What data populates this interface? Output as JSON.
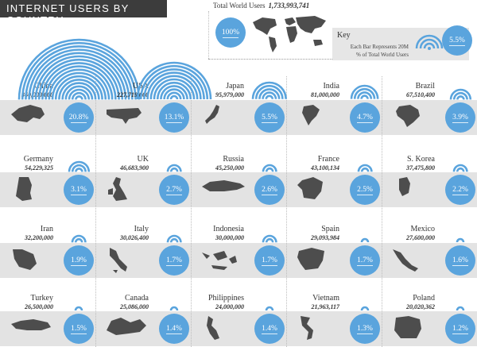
{
  "title": "INTERNET USERS BY COUNTRY",
  "world": {
    "label": "Total World Users",
    "value": "1,733,993,741",
    "percent": "100%"
  },
  "key": {
    "title": "Key",
    "bar_text": "Each Bar Represents 20M",
    "pct_text": "% of Total World Users",
    "sample_pct": "5.5%"
  },
  "colors": {
    "wifi": "#5aa4dd",
    "map": "#4d4d4d",
    "band": "#e3e3e3",
    "title_bar": "#3c3c3c"
  },
  "chart_data": {
    "type": "bar",
    "title": "INTERNET USERS BY COUNTRY",
    "categories": [
      "China",
      "USA",
      "Japan",
      "India",
      "Brazil",
      "Germany",
      "UK",
      "Russia",
      "France",
      "S. Korea",
      "Iran",
      "Italy",
      "Indonesia",
      "Spain",
      "Mexico",
      "Turkey",
      "Canada",
      "Philippines",
      "Vietnam",
      "Poland"
    ],
    "series": [
      {
        "values": [
          360000000,
          227719000,
          95979000,
          81000000,
          67510400,
          54229325,
          46683900,
          45250000,
          43100134,
          37475800,
          32200000,
          30026400,
          30000000,
          29093984,
          27600000,
          26500000,
          25086000,
          24000000,
          21963117,
          20020362
        ]
      }
    ],
    "countries": [
      {
        "name": "China",
        "users": "360,000,000",
        "pct": "20.8%",
        "bars": 18
      },
      {
        "name": "USA",
        "users": "227,719,000",
        "pct": "13.1%",
        "bars": 11
      },
      {
        "name": "Japan",
        "users": "95,979,000",
        "pct": "5.5%",
        "bars": 5
      },
      {
        "name": "India",
        "users": "81,000,000",
        "pct": "4.7%",
        "bars": 4
      },
      {
        "name": "Brazil",
        "users": "67,510,400",
        "pct": "3.9%",
        "bars": 3
      },
      {
        "name": "Germany",
        "users": "54,229,325",
        "pct": "3.1%",
        "bars": 3
      },
      {
        "name": "UK",
        "users": "46,683,900",
        "pct": "2.7%",
        "bars": 2
      },
      {
        "name": "Russia",
        "users": "45,250,000",
        "pct": "2.6%",
        "bars": 2
      },
      {
        "name": "France",
        "users": "43,100,134",
        "pct": "2.5%",
        "bars": 2
      },
      {
        "name": "S. Korea",
        "users": "37,475,800",
        "pct": "2.2%",
        "bars": 2
      },
      {
        "name": "Iran",
        "users": "32,200,000",
        "pct": "1.9%",
        "bars": 2
      },
      {
        "name": "Italy",
        "users": "30,026,400",
        "pct": "1.7%",
        "bars": 2
      },
      {
        "name": "Indonesia",
        "users": "30,000,000",
        "pct": "1.7%",
        "bars": 2
      },
      {
        "name": "Spain",
        "users": "29,093,984",
        "pct": "1.7%",
        "bars": 1
      },
      {
        "name": "Mexico",
        "users": "27,600,000",
        "pct": "1.6%",
        "bars": 1
      },
      {
        "name": "Turkey",
        "users": "26,500,000",
        "pct": "1.5%",
        "bars": 1
      },
      {
        "name": "Canada",
        "users": "25,086,000",
        "pct": "1.4%",
        "bars": 1
      },
      {
        "name": "Philippines",
        "users": "24,000,000",
        "pct": "1.4%",
        "bars": 1
      },
      {
        "name": "Vietnam",
        "users": "21,963,117",
        "pct": "1.3%",
        "bars": 1
      },
      {
        "name": "Poland",
        "users": "20,020,362",
        "pct": "1.2%",
        "bars": 1
      }
    ]
  }
}
